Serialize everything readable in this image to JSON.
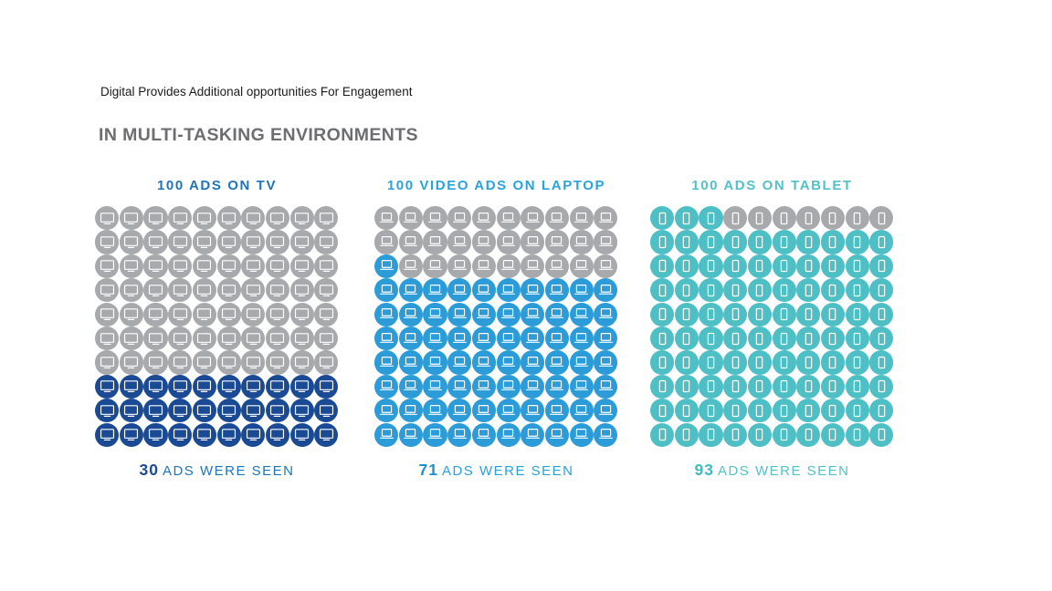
{
  "header": {
    "title": "Digital Provides Additional opportunities For Engagement",
    "subtitle": "IN MULTI-TASKING ENVIRONMENTS"
  },
  "chart_data": {
    "type": "pictogram",
    "description": "Three 10x10 unit pictogram grids comparing ad visibility by device; filled icons count up from the bottom row, partial rows fill from the left",
    "grid": {
      "rows": 10,
      "columns": 10,
      "unit_total": 100
    },
    "legend_position": "none",
    "unseen_color": "#a7a9ac",
    "charts": [
      {
        "title": "100 ADS ON TV",
        "device": "tv",
        "icon": "tv-icon",
        "total": 100,
        "seen": 30,
        "caption": "ADS WERE SEEN",
        "accent": "#1b4a94",
        "title_color": "#1c75bc",
        "number_color": "#1b4a94",
        "label_color": "#1c75bc",
        "unseen_color": "#a7a9ac"
      },
      {
        "title": "100 VIDEO ADS ON LAPTOP",
        "device": "laptop",
        "icon": "laptop-icon",
        "total": 100,
        "seen": 71,
        "caption": "ADS WERE SEEN",
        "accent": "#2b9cd8",
        "title_color": "#29a3de",
        "number_color": "#1e8fd0",
        "label_color": "#29a0dc",
        "unseen_color": "#a7a9ac"
      },
      {
        "title": "100 ADS ON TABLET",
        "device": "tablet",
        "icon": "tablet-icon",
        "total": 100,
        "seen": 93,
        "caption": "ADS WERE SEEN",
        "accent": "#4ec0c5",
        "title_color": "#52c1c8",
        "number_color": "#3fbcc2",
        "label_color": "#52c1c8",
        "unseen_color": "#a7a9ac"
      }
    ]
  }
}
